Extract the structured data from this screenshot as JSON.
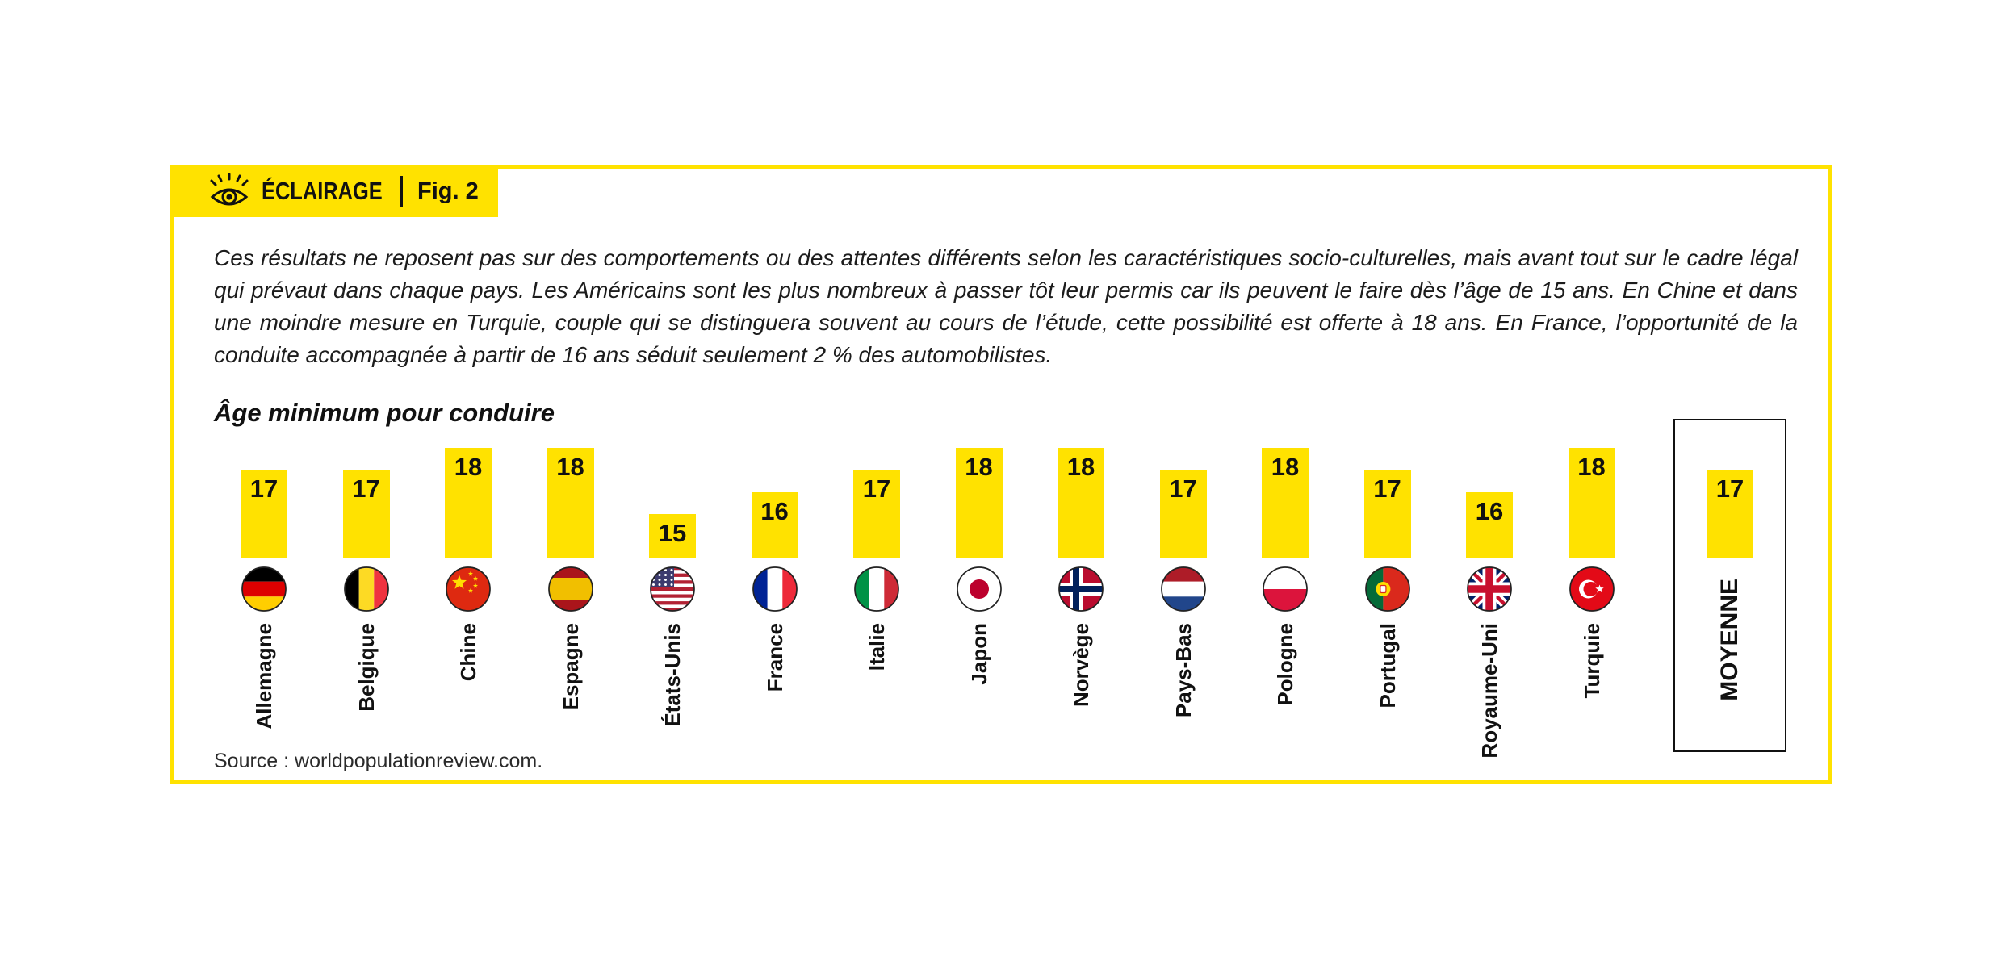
{
  "badge": {
    "label": "ÉCLAIRAGE",
    "fig": "Fig. 2",
    "icon": "eye-icon"
  },
  "intro": "Ces résultats ne reposent pas sur des comportements ou des attentes différents selon les caractéristiques socio-culturelles, mais avant tout sur le cadre légal qui prévaut dans chaque pays. Les Américains sont les plus nombreux à passer tôt leur permis car ils peuvent le faire dès l’âge de 15 ans. En Chine et dans une moindre mesure en Turquie, couple qui se distinguera souvent au cours de l’étude, cette possibilité est offerte à 18 ans. En France, l’opportunité de la conduite accompagnée à partir de 16 ans séduit seulement 2 % des automobilistes.",
  "chart_data": {
    "type": "bar",
    "title": "Âge minimum pour conduire",
    "xlabel": "",
    "ylabel": "",
    "ylim": [
      13,
      18
    ],
    "grid": false,
    "value_labels": "inside-top",
    "categories": [
      "Allemagne",
      "Belgique",
      "Chine",
      "Espagne",
      "États-Unis",
      "France",
      "Italie",
      "Japon",
      "Norvège",
      "Pays-Bas",
      "Pologne",
      "Portugal",
      "Royaume-Uni",
      "Turquie",
      "MOYENNE"
    ],
    "values": [
      17,
      17,
      18,
      18,
      15,
      16,
      17,
      18,
      18,
      17,
      18,
      17,
      16,
      18,
      17
    ],
    "countries": [
      {
        "label": "Allemagne",
        "value": 17,
        "flag": "de"
      },
      {
        "label": "Belgique",
        "value": 17,
        "flag": "be"
      },
      {
        "label": "Chine",
        "value": 18,
        "flag": "cn"
      },
      {
        "label": "Espagne",
        "value": 18,
        "flag": "es"
      },
      {
        "label": "États-Unis",
        "value": 15,
        "flag": "us"
      },
      {
        "label": "France",
        "value": 16,
        "flag": "fr"
      },
      {
        "label": "Italie",
        "value": 17,
        "flag": "it"
      },
      {
        "label": "Japon",
        "value": 18,
        "flag": "jp"
      },
      {
        "label": "Norvège",
        "value": 18,
        "flag": "no"
      },
      {
        "label": "Pays-Bas",
        "value": 17,
        "flag": "nl"
      },
      {
        "label": "Pologne",
        "value": 18,
        "flag": "pl"
      },
      {
        "label": "Portugal",
        "value": 17,
        "flag": "pt"
      },
      {
        "label": "Royaume-Uni",
        "value": 16,
        "flag": "gb"
      },
      {
        "label": "Turquie",
        "value": 18,
        "flag": "tr"
      },
      {
        "label": "MOYENNE",
        "value": 17,
        "flag": null,
        "boxed": true
      }
    ]
  },
  "source": "Source : worldpopulationreview.com.",
  "colors": {
    "accent": "#FFE200",
    "text": "#111111",
    "flag_outline": "#222222"
  }
}
